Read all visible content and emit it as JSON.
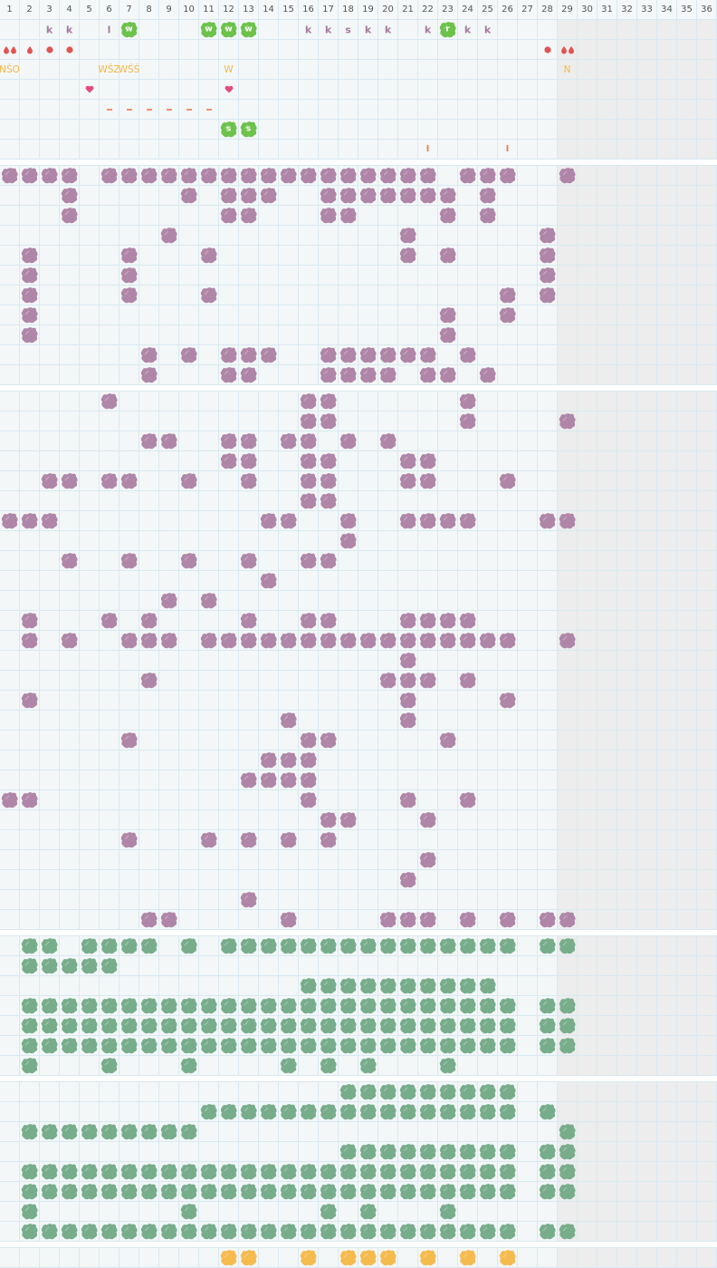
{
  "columns": [
    1,
    2,
    3,
    4,
    5,
    6,
    7,
    8,
    9,
    10,
    11,
    12,
    13,
    14,
    15,
    16,
    17,
    18,
    19,
    20,
    21,
    22,
    23,
    24,
    25,
    26,
    27,
    28,
    29,
    30,
    31,
    32,
    33,
    34,
    35,
    36
  ],
  "inactive_from_column": 29,
  "colors": {
    "purple": "#b086a8",
    "green": "#78ad8c",
    "bright_green": "#6cc24a",
    "yellow": "#f6bb4f",
    "red": "#e05552",
    "heart": "#e24c7c"
  },
  "top_section": {
    "rows": [
      [
        {
          "col": 3,
          "type": "letter",
          "text": "k"
        },
        {
          "col": 4,
          "type": "letter",
          "text": "k"
        },
        {
          "col": 6,
          "type": "letter",
          "text": "l"
        },
        {
          "col": 7,
          "type": "green-letter",
          "text": "w"
        },
        {
          "col": 11,
          "type": "green-letter",
          "text": "w"
        },
        {
          "col": 12,
          "type": "green-letter",
          "text": "w"
        },
        {
          "col": 13,
          "type": "green-letter",
          "text": "w"
        },
        {
          "col": 16,
          "type": "letter",
          "text": "k"
        },
        {
          "col": 17,
          "type": "letter",
          "text": "k"
        },
        {
          "col": 18,
          "type": "letter",
          "text": "s"
        },
        {
          "col": 19,
          "type": "letter",
          "text": "k"
        },
        {
          "col": 20,
          "type": "letter",
          "text": "k"
        },
        {
          "col": 22,
          "type": "letter",
          "text": "k"
        },
        {
          "col": 23,
          "type": "green-letter",
          "text": "r"
        },
        {
          "col": 24,
          "type": "letter",
          "text": "k"
        },
        {
          "col": 25,
          "type": "letter",
          "text": "k"
        }
      ],
      [
        {
          "col": 1,
          "type": "double-drop"
        },
        {
          "col": 2,
          "type": "drop"
        },
        {
          "col": 3,
          "type": "dot"
        },
        {
          "col": 4,
          "type": "dot"
        },
        {
          "col": 28,
          "type": "dot"
        },
        {
          "col": 29,
          "type": "double-drop"
        }
      ],
      [
        {
          "col": 1,
          "type": "text",
          "text": "NŚO"
        },
        {
          "col": 6,
          "type": "text",
          "text": "WŚZ"
        },
        {
          "col": 7,
          "type": "text",
          "text": "WŚŚ"
        },
        {
          "col": 12,
          "type": "text",
          "text": "W"
        },
        {
          "col": 29,
          "type": "text",
          "text": "N"
        }
      ],
      [
        {
          "col": 5,
          "type": "heart"
        },
        {
          "col": 12,
          "type": "heart"
        }
      ],
      [
        {
          "col": 6,
          "type": "dash"
        },
        {
          "col": 7,
          "type": "dash"
        },
        {
          "col": 8,
          "type": "dash"
        },
        {
          "col": 9,
          "type": "dash"
        },
        {
          "col": 10,
          "type": "dash"
        },
        {
          "col": 11,
          "type": "dash"
        }
      ],
      [
        {
          "col": 12,
          "type": "green-letter",
          "text": "s"
        },
        {
          "col": 13,
          "type": "green-letter",
          "text": "s"
        }
      ],
      [
        {
          "col": 22,
          "type": "mark",
          "text": "I"
        },
        {
          "col": 26,
          "type": "mark",
          "text": "I"
        }
      ]
    ]
  },
  "blob_sections": [
    {
      "color": "purple",
      "rows": [
        [
          1,
          2,
          3,
          4,
          6,
          7,
          8,
          9,
          10,
          11,
          12,
          13,
          14,
          15,
          16,
          17,
          18,
          19,
          20,
          21,
          22,
          24,
          25,
          26,
          29
        ],
        [
          4,
          10,
          12,
          13,
          14,
          17,
          18,
          19,
          20,
          21,
          22,
          23,
          25
        ],
        [
          4,
          12,
          13,
          17,
          18,
          23,
          25
        ],
        [
          9,
          21,
          28
        ],
        [
          2,
          7,
          11,
          21,
          23,
          28
        ],
        [
          2,
          7,
          28
        ],
        [
          2,
          7,
          11,
          26,
          28
        ],
        [
          2,
          23,
          26
        ],
        [
          2,
          23
        ],
        [
          8,
          10,
          12,
          13,
          14,
          17,
          18,
          19,
          20,
          21,
          22,
          24
        ],
        [
          8,
          12,
          13,
          17,
          18,
          19,
          20,
          22,
          23,
          25
        ]
      ]
    },
    {
      "color": "purple",
      "rows": [
        [
          6,
          16,
          17,
          24
        ],
        [
          16,
          17,
          24,
          29
        ],
        [
          8,
          9,
          12,
          13,
          15,
          16,
          18,
          20
        ],
        [
          12,
          13,
          16,
          17,
          21,
          22
        ],
        [
          3,
          4,
          6,
          7,
          10,
          13,
          16,
          17,
          21,
          22,
          26
        ],
        [
          16,
          17
        ],
        [
          1,
          2,
          3,
          14,
          15,
          18,
          21,
          22,
          23,
          24,
          28,
          29
        ],
        [
          18
        ],
        [
          4,
          7,
          10,
          13,
          16,
          17
        ],
        [
          14
        ],
        [
          9,
          11
        ],
        [
          2,
          6,
          8,
          13,
          16,
          17,
          21,
          22,
          23,
          24
        ],
        [
          2,
          4,
          7,
          8,
          9,
          11,
          12,
          13,
          14,
          15,
          16,
          17,
          18,
          19,
          20,
          21,
          22,
          23,
          24,
          25,
          26,
          29
        ],
        [
          21
        ],
        [
          8,
          20,
          21,
          22,
          24
        ],
        [
          2,
          21,
          26
        ],
        [
          15,
          21
        ],
        [
          7,
          16,
          17,
          23
        ],
        [
          14,
          15,
          16
        ],
        [
          13,
          14,
          15,
          16
        ],
        [
          1,
          2,
          16,
          21,
          24
        ],
        [
          17,
          18,
          22
        ],
        [
          7,
          11,
          13,
          15,
          17
        ],
        [
          22
        ],
        [
          21
        ],
        [
          13
        ],
        [
          8,
          9,
          15,
          20,
          21,
          22,
          24,
          26,
          28,
          29
        ]
      ]
    },
    {
      "color": "green",
      "rows": [
        [
          2,
          3,
          5,
          6,
          7,
          8,
          10,
          12,
          13,
          14,
          15,
          16,
          17,
          18,
          19,
          20,
          21,
          22,
          23,
          24,
          25,
          26,
          28,
          29
        ],
        [
          2,
          3,
          4,
          5,
          6
        ],
        [
          16,
          17,
          18,
          19,
          20,
          21,
          22,
          23,
          24,
          25
        ],
        [
          2,
          3,
          4,
          5,
          6,
          7,
          8,
          9,
          10,
          11,
          12,
          13,
          14,
          15,
          16,
          17,
          18,
          19,
          20,
          21,
          22,
          23,
          24,
          25,
          26,
          28,
          29
        ],
        [
          2,
          3,
          4,
          5,
          6,
          7,
          8,
          9,
          10,
          11,
          12,
          13,
          14,
          15,
          16,
          17,
          18,
          19,
          20,
          21,
          22,
          23,
          24,
          25,
          26,
          28,
          29
        ],
        [
          2,
          3,
          4,
          5,
          6,
          7,
          8,
          9,
          10,
          11,
          12,
          13,
          14,
          15,
          16,
          17,
          18,
          19,
          20,
          21,
          22,
          23,
          24,
          25,
          26,
          28,
          29
        ],
        [
          2,
          6,
          10,
          15,
          17,
          19,
          23
        ]
      ]
    },
    {
      "color": "green",
      "rows": [
        [
          18,
          19,
          20,
          21,
          22,
          23,
          24,
          25,
          26
        ],
        [
          11,
          12,
          13,
          14,
          15,
          16,
          17,
          18,
          19,
          20,
          21,
          22,
          23,
          24,
          25,
          26,
          28
        ],
        [
          2,
          3,
          4,
          5,
          6,
          7,
          8,
          9,
          10,
          29
        ],
        [
          18,
          19,
          20,
          21,
          22,
          23,
          24,
          25,
          26,
          28,
          29
        ],
        [
          2,
          3,
          4,
          5,
          6,
          7,
          8,
          9,
          10,
          11,
          12,
          13,
          14,
          15,
          16,
          17,
          18,
          19,
          20,
          21,
          22,
          23,
          24,
          25,
          26,
          28,
          29
        ],
        [
          2,
          3,
          4,
          5,
          6,
          7,
          8,
          9,
          10,
          11,
          12,
          13,
          14,
          15,
          16,
          17,
          18,
          19,
          20,
          21,
          22,
          23,
          24,
          25,
          26,
          28,
          29
        ],
        [
          2,
          10,
          17,
          19,
          23
        ],
        [
          2,
          3,
          4,
          5,
          6,
          7,
          8,
          9,
          10,
          11,
          12,
          13,
          14,
          15,
          16,
          17,
          18,
          19,
          20,
          21,
          22,
          23,
          24,
          25,
          26,
          28,
          29
        ]
      ]
    },
    {
      "color": "yellow",
      "rows": [
        [
          12,
          13,
          16,
          18,
          19,
          20,
          22,
          24,
          26
        ]
      ]
    }
  ]
}
